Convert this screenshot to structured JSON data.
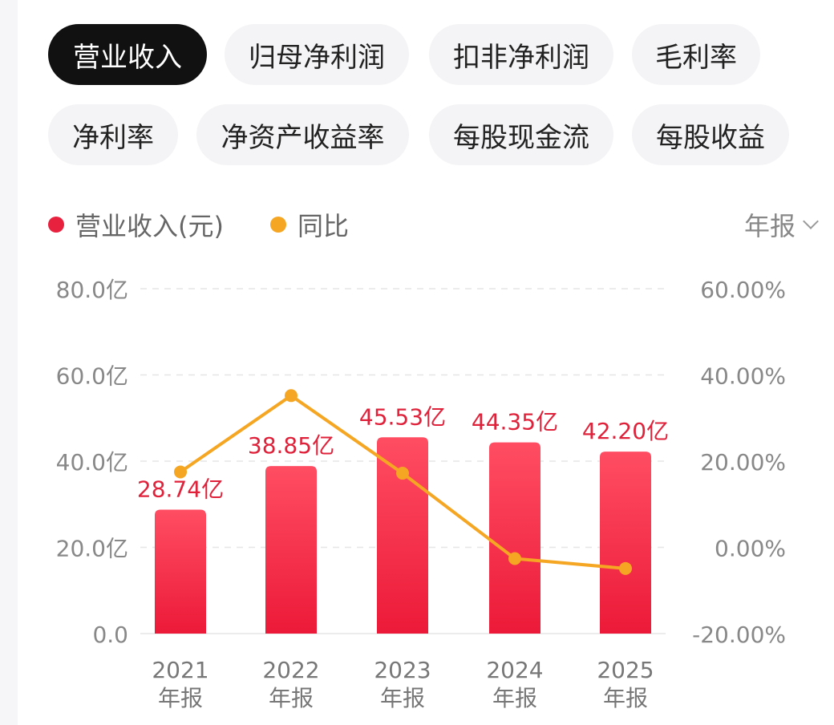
{
  "tabs": [
    {
      "label": "营业收入",
      "active": true
    },
    {
      "label": "归母净利润",
      "active": false
    },
    {
      "label": "扣非净利润",
      "active": false
    },
    {
      "label": "毛利率",
      "active": false
    },
    {
      "label": "净利率",
      "active": false
    },
    {
      "label": "净资产收益率",
      "active": false
    },
    {
      "label": "每股现金流",
      "active": false
    },
    {
      "label": "每股收益",
      "active": false
    }
  ],
  "period_selector": {
    "label": "年报",
    "icon": "chevron-down-icon"
  },
  "colors": {
    "bar": "#f0203c",
    "bar_top": "#ff4d62",
    "line": "#f5a623",
    "label": "#e0213a",
    "grid": "#e6e6e6",
    "axis_text": "#888888"
  },
  "chart_data": {
    "type": "bar",
    "categories": [
      [
        "2021",
        "年报"
      ],
      [
        "2022",
        "年报"
      ],
      [
        "2023",
        "年报"
      ],
      [
        "2024",
        "年报"
      ],
      [
        "2025",
        "年报"
      ]
    ],
    "legend": [
      "营业收入(元)",
      "同比"
    ],
    "series": [
      {
        "name": "营业收入(元)",
        "type": "bar",
        "axis": "left",
        "values": [
          28.74,
          38.85,
          45.53,
          44.35,
          42.2
        ],
        "labels": [
          "28.74亿",
          "38.85亿",
          "45.53亿",
          "44.35亿",
          "42.20亿"
        ]
      },
      {
        "name": "同比",
        "type": "line",
        "axis": "right",
        "values": [
          17.5,
          35.2,
          17.2,
          -2.6,
          -4.9
        ]
      }
    ],
    "y_left": {
      "min": 0,
      "max": 80,
      "ticks": [
        "0.0",
        "20.0亿",
        "40.0亿",
        "60.0亿",
        "80.0亿"
      ]
    },
    "y_right": {
      "min": -20,
      "max": 60,
      "ticks": [
        "-20.00%",
        "0.00%",
        "20.00%",
        "40.00%",
        "60.00%"
      ]
    },
    "grid": true,
    "legend_position": "top-left"
  }
}
